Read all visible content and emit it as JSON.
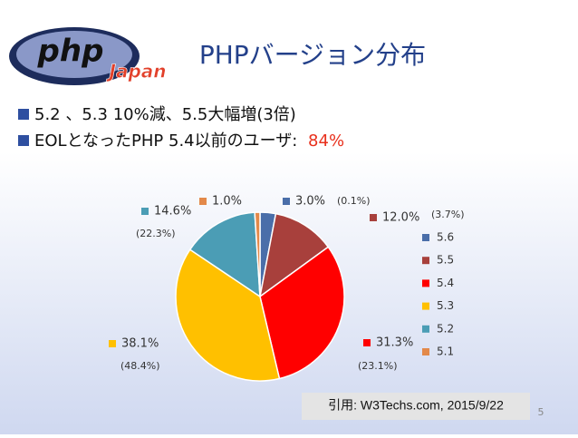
{
  "logo": {
    "text": "php",
    "subtext": "Japan"
  },
  "slide": {
    "title": "PHPバージョン分布",
    "bullets": [
      [
        "5.2 、5.3 10%減、5.5大幅増(3倍)"
      ],
      [
        "EOLとなったPHP 5.4以前のユーザ: ",
        "84%"
      ]
    ]
  },
  "chart_data": {
    "type": "pie",
    "categories": [
      "5.6",
      "5.5",
      "5.4",
      "5.3",
      "5.2",
      "5.1"
    ],
    "values": [
      3.0,
      12.0,
      31.3,
      38.1,
      14.6,
      1.0
    ],
    "value_labels": [
      "3.0%",
      "12.0%",
      "31.3%",
      "38.1%",
      "14.6%",
      "1.0%"
    ],
    "annotations": [
      "(0.1%)",
      "(3.7%)",
      "(23.1%)",
      "(48.4%)",
      "(22.3%)",
      null
    ],
    "colors": [
      "#4a6ea9",
      "#a8403c",
      "#ff0000",
      "#ffc000",
      "#4b9db5",
      "#e3894a"
    ],
    "legend": "right"
  },
  "citation": "引用: W3Techs.com, 2015/9/22",
  "page_number": "5"
}
